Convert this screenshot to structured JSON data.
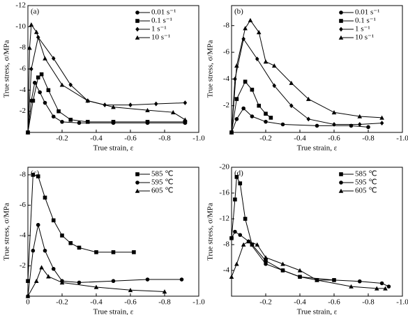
{
  "chart_data": [
    {
      "type": "line",
      "label": "(a)",
      "xlabel": "True strain, ε",
      "ylabel": "True stress, σ/MPa",
      "xlim": [
        0,
        -1.0
      ],
      "xticks": [
        -0.2,
        -0.4,
        -0.6,
        -0.8,
        {
          "value": -1,
          "label": "-1.0"
        }
      ],
      "ylim": [
        0,
        -12
      ],
      "yticks": [
        -12,
        -10,
        -8,
        -6,
        -4,
        -2
      ],
      "legend": "upper right",
      "series": [
        {
          "name": "0.01 s⁻¹",
          "color": "#000000",
          "marker": "circle",
          "x": [
            0,
            -0.02,
            -0.04,
            -0.07,
            -0.1,
            -0.15,
            -0.2,
            -0.3,
            -0.5,
            -0.7,
            -0.92
          ],
          "values": [
            0,
            -3,
            -4.7,
            -3.8,
            -2.8,
            -1.5,
            -1.0,
            -0.9,
            -0.9,
            -0.9,
            -0.9
          ]
        },
        {
          "name": "0.1 s⁻¹",
          "color": "#000000",
          "marker": "square",
          "x": [
            0,
            -0.03,
            -0.06,
            -0.08,
            -0.12,
            -0.18,
            -0.25,
            -0.35,
            -0.5,
            -0.7,
            -0.92
          ],
          "values": [
            0,
            -3,
            -5.2,
            -5.5,
            -4,
            -2,
            -1.2,
            -1,
            -1,
            -1,
            -1
          ]
        },
        {
          "name": "1 s⁻¹",
          "color": "#000000",
          "marker": "diamond",
          "x": [
            0,
            -0.02,
            -0.06,
            -0.15,
            -0.25,
            -0.35,
            -0.45,
            -0.6,
            -0.75,
            -0.92
          ],
          "values": [
            0,
            -6,
            -9,
            -7,
            -4.5,
            -3,
            -2.6,
            -2.6,
            -2.7,
            -2.8
          ]
        },
        {
          "name": "10 s⁻¹",
          "color": "#000000",
          "marker": "triangle",
          "x": [
            0,
            -0.01,
            -0.02,
            -0.05,
            -0.1,
            -0.2,
            -0.35,
            -0.5,
            -0.7,
            -0.85,
            -0.92
          ],
          "values": [
            0,
            -8,
            -10.2,
            -9.5,
            -7,
            -4.5,
            -3,
            -2.4,
            -2.1,
            -1.9,
            -1.2
          ]
        }
      ]
    },
    {
      "type": "line",
      "label": "(b)",
      "xlabel": "True strain, ε",
      "ylabel": "True stress, σ/MPa",
      "xlim": [
        0,
        -1.0
      ],
      "xticks": [
        -0.2,
        -0.4,
        -0.6,
        -0.8,
        {
          "value": -1,
          "label": "-1.0"
        }
      ],
      "ylim": [
        0,
        -9.5
      ],
      "yticks": [
        -8,
        -6,
        -4,
        -2
      ],
      "legend": "upper right",
      "series": [
        {
          "name": "0.01 s⁻¹",
          "color": "#000000",
          "marker": "circle",
          "x": [
            0,
            -0.03,
            -0.07,
            -0.12,
            -0.2,
            -0.3,
            -0.5,
            -0.7,
            -0.8
          ],
          "values": [
            0,
            -1,
            -1.8,
            -1.2,
            -0.8,
            -0.6,
            -0.5,
            -0.5,
            -0.4
          ]
        },
        {
          "name": "0.1 s⁻¹",
          "color": "#000000",
          "marker": "square",
          "x": [
            0,
            -0.03,
            -0.08,
            -0.12,
            -0.16,
            -0.2,
            -0.23
          ],
          "values": [
            0,
            -2.5,
            -3.8,
            -3.2,
            -2,
            -1.4,
            -1.1
          ]
        },
        {
          "name": "1 s⁻¹",
          "color": "#000000",
          "marker": "diamond",
          "x": [
            0,
            -0.02,
            -0.07,
            -0.15,
            -0.25,
            -0.35,
            -0.45,
            -0.6,
            -0.75,
            -0.88
          ],
          "values": [
            0,
            -4,
            -7,
            -5.5,
            -3.5,
            -2,
            -1,
            -0.6,
            -0.6,
            -0.7
          ]
        },
        {
          "name": "10 s⁻¹",
          "color": "#000000",
          "marker": "triangle",
          "x": [
            0,
            -0.03,
            -0.08,
            -0.11,
            -0.16,
            -0.2,
            -0.25,
            -0.35,
            -0.45,
            -0.6,
            -0.75,
            -0.88
          ],
          "values": [
            0,
            -5,
            -7.8,
            -8.4,
            -7.5,
            -5.3,
            -5,
            -3.7,
            -2.5,
            -1.5,
            -1.2,
            -1.1
          ]
        }
      ]
    },
    {
      "type": "line",
      "label": "(c)",
      "xlabel": "True strain, ε",
      "ylabel": "True stress, σ/MPa",
      "xlim": [
        0,
        -1.0
      ],
      "xticks": [
        0,
        -0.2,
        -0.4,
        -0.6,
        -0.8,
        {
          "value": -1,
          "label": "-1.0"
        }
      ],
      "ylim": [
        0,
        -8.5
      ],
      "yticks": [
        -8,
        -6,
        -4,
        -2
      ],
      "legend": "upper right",
      "series": [
        {
          "name": "585 ℃",
          "color": "#000000",
          "marker": "square",
          "x": [
            0,
            -0.03,
            -0.06,
            -0.1,
            -0.15,
            -0.2,
            -0.25,
            -0.3,
            -0.4,
            -0.5,
            -0.62
          ],
          "values": [
            -1,
            -8,
            -7.9,
            -6.5,
            -5,
            -4,
            -3.5,
            -3.2,
            -2.9,
            -2.9,
            -2.9
          ]
        },
        {
          "name": "595 ℃",
          "color": "#000000",
          "marker": "circle",
          "x": [
            0,
            -0.03,
            -0.06,
            -0.1,
            -0.15,
            -0.2,
            -0.3,
            -0.5,
            -0.7,
            -0.9
          ],
          "values": [
            0,
            -3,
            -4.7,
            -3,
            -1.8,
            -1,
            -0.9,
            -1,
            -1.1,
            -1.1
          ]
        },
        {
          "name": "605 ℃",
          "color": "#000000",
          "marker": "triangle",
          "x": [
            0,
            -0.05,
            -0.08,
            -0.12,
            -0.2,
            -0.4,
            -0.6,
            -0.8
          ],
          "values": [
            0,
            -1,
            -1.9,
            -1.3,
            -0.9,
            -0.6,
            -0.4,
            -0.3
          ]
        }
      ]
    },
    {
      "type": "line",
      "label": "(d)",
      "xlabel": "True strain, ε",
      "ylabel": "True stress, σ/MPa",
      "xlim": [
        0,
        -1.0
      ],
      "xticks": [
        -0.2,
        -0.4,
        -0.6,
        -0.8,
        {
          "value": -1,
          "label": "-1.0"
        }
      ],
      "ylim": [
        0,
        -20
      ],
      "yticks": [
        -20,
        -16,
        -12,
        -8,
        -4
      ],
      "legend": "upper right",
      "series": [
        {
          "name": "585 ℃",
          "color": "#000000",
          "marker": "square",
          "x": [
            0,
            -0.02,
            -0.03,
            -0.05,
            -0.08,
            -0.12,
            -0.2,
            -0.3,
            -0.4,
            -0.5,
            -0.6
          ],
          "values": [
            -9,
            -15,
            -18.5,
            -17.5,
            -12,
            -8,
            -5.5,
            -4,
            -3,
            -2.5,
            -2.5
          ]
        },
        {
          "name": "595 ℃",
          "color": "#000000",
          "marker": "circle",
          "x": [
            0,
            -0.02,
            -0.05,
            -0.1,
            -0.2,
            -0.3,
            -0.4,
            -0.6,
            -0.75,
            -0.88,
            -0.92
          ],
          "values": [
            -9,
            -10,
            -9.5,
            -8.5,
            -5,
            -4,
            -3,
            -2.5,
            -2.3,
            -2,
            -1.5
          ]
        },
        {
          "name": "605 ℃",
          "color": "#000000",
          "marker": "triangle",
          "x": [
            0,
            -0.03,
            -0.07,
            -0.1,
            -0.15,
            -0.2,
            -0.3,
            -0.4,
            -0.5,
            -0.7,
            -0.85,
            -0.9
          ],
          "values": [
            -3,
            -5,
            -8,
            -8.5,
            -8,
            -6,
            -5,
            -4,
            -2.5,
            -1.5,
            -1.2,
            -1.2
          ]
        }
      ]
    }
  ]
}
